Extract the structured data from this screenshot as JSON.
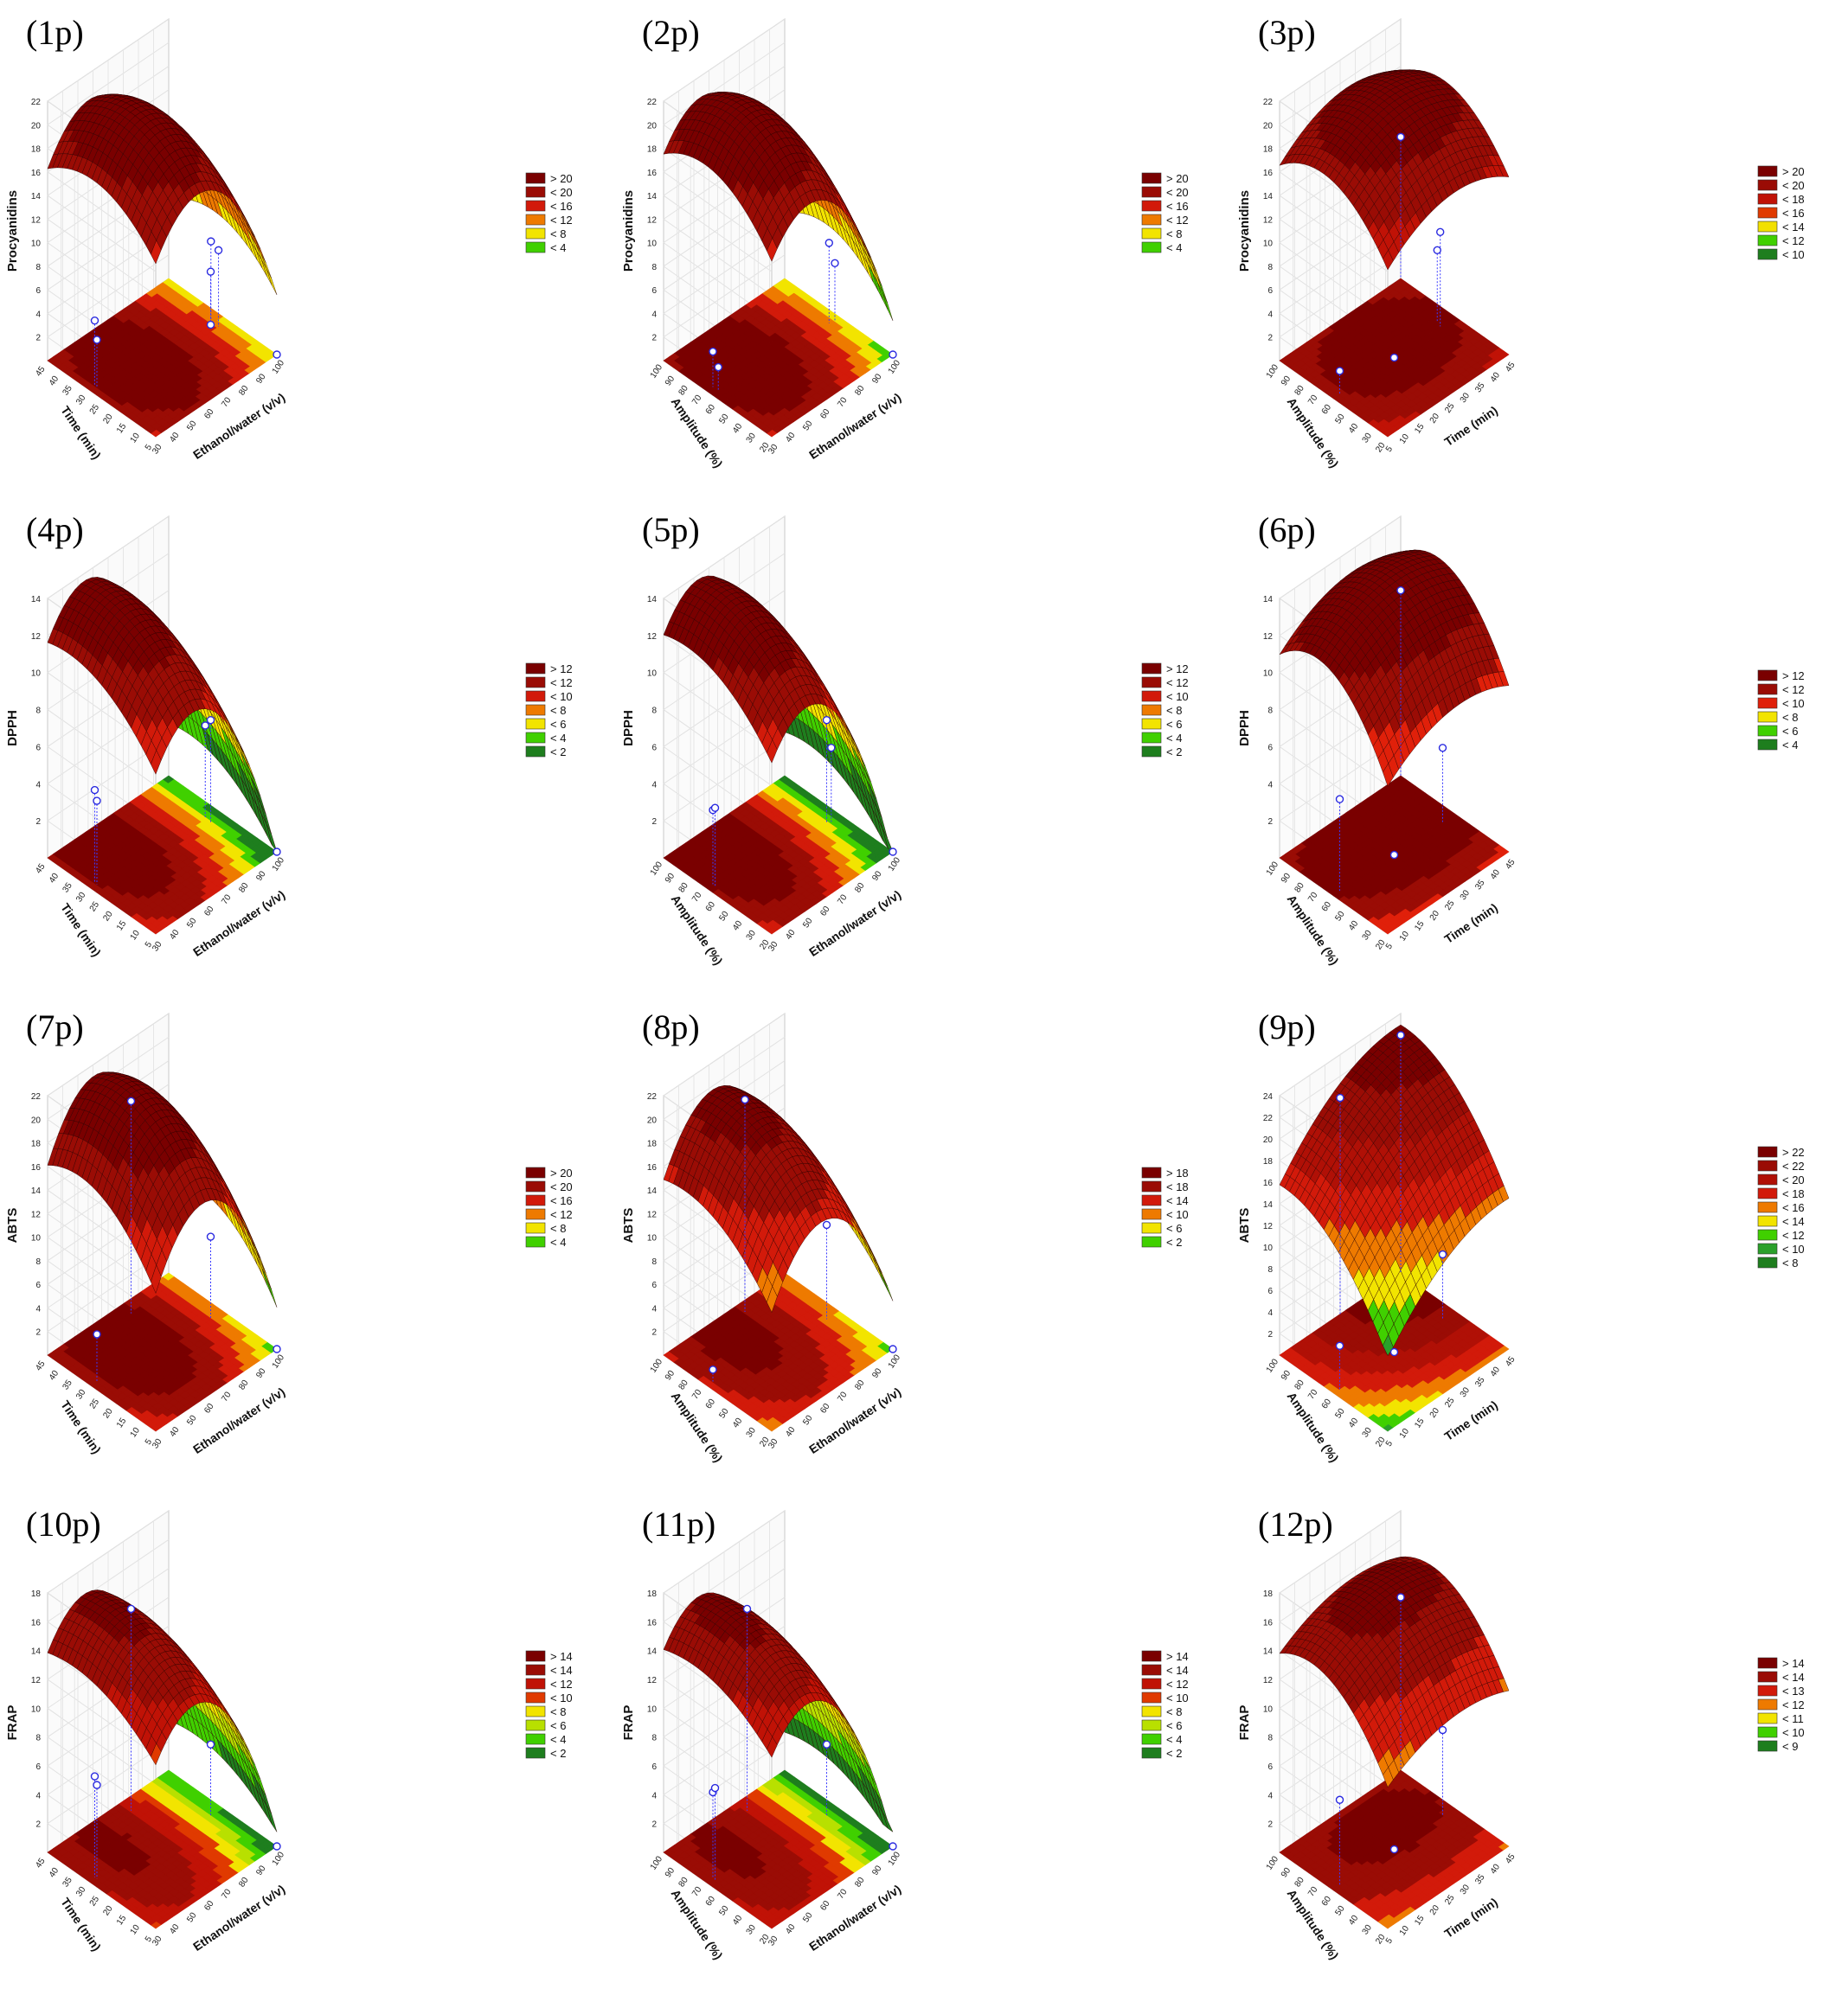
{
  "figure": {
    "panel_count": 12,
    "columns": 3,
    "common_ticks": {
      "ethanol": [
        "30",
        "40",
        "50",
        "60",
        "70",
        "80",
        "90",
        "100"
      ],
      "time": [
        "5",
        "10",
        "15",
        "20",
        "25",
        "30",
        "35",
        "40",
        "45"
      ],
      "amplitude": [
        "20",
        "30",
        "40",
        "50",
        "60",
        "70",
        "80",
        "90",
        "100"
      ]
    }
  },
  "chart_data": [
    {
      "type": "surface",
      "label": "(1p)",
      "zlabel": "Procyanidins",
      "xlabel": "Ethanol/water (v/v)",
      "ylabel": "Time (min)",
      "xlim": [
        30,
        100
      ],
      "ylim": [
        5,
        45
      ],
      "zlim": [
        0,
        22
      ],
      "z_ticks": [
        "2",
        "4",
        "6",
        "8",
        "10",
        "12",
        "14",
        "16",
        "18",
        "20",
        "22"
      ],
      "legend": [
        "> 20",
        "< 20",
        "< 16",
        "< 12",
        "< 8",
        "< 4"
      ],
      "legend_colors": [
        "#7a0000",
        "#9a0c05",
        "#d21a0a",
        "#ee7a00",
        "#f2e400",
        "#40d000"
      ],
      "surface": {
        "peak": 21.5,
        "peak_x": 0.34,
        "peak_y": 0.58,
        "curv_x": 30,
        "curv_y": 10,
        "min_z": 1
      },
      "points": [
        [
          0.92,
          0.45,
          6.5
        ],
        [
          0.92,
          0.52,
          6.8
        ],
        [
          0.9,
          0.5,
          4.5
        ],
        [
          0.05,
          0.62,
          5.5
        ],
        [
          0.05,
          0.6,
          4
        ],
        [
          1.0,
          0.0,
          0
        ],
        [
          0.9,
          0.5,
          0
        ]
      ]
    },
    {
      "type": "surface",
      "label": "(2p)",
      "zlabel": "Procyanidins",
      "xlabel": "Ethanol/water (v/v)",
      "ylabel": "Amplitude (%)",
      "xlim": [
        30,
        100
      ],
      "ylim": [
        20,
        100
      ],
      "zlim": [
        0,
        22
      ],
      "z_ticks": [
        "2",
        "4",
        "6",
        "8",
        "10",
        "12",
        "14",
        "16",
        "18",
        "20",
        "22"
      ],
      "legend": [
        "> 20",
        "< 20",
        "< 16",
        "< 12",
        "< 8",
        "< 4"
      ],
      "legend_colors": [
        "#7a0000",
        "#9a0c05",
        "#d21a0a",
        "#ee7a00",
        "#f2e400",
        "#40d000"
      ],
      "surface": {
        "peak": 21.8,
        "peak_x": 0.3,
        "peak_y": 0.62,
        "curv_x": 30,
        "curv_y": 11,
        "min_z": 1
      },
      "points": [
        [
          0.92,
          0.5,
          6.8
        ],
        [
          0.95,
          0.48,
          5
        ],
        [
          0.05,
          0.55,
          2
        ],
        [
          0.05,
          0.6,
          3
        ],
        [
          1.0,
          0.0,
          0
        ]
      ]
    },
    {
      "type": "surface",
      "label": "(3p)",
      "zlabel": "Procyanidins",
      "xlabel": "Time (min)",
      "ylabel": "Amplitude (%)",
      "xlim": [
        5,
        45
      ],
      "ylim": [
        20,
        100
      ],
      "zlim": [
        0,
        22
      ],
      "z_ticks": [
        "2",
        "4",
        "6",
        "8",
        "10",
        "12",
        "14",
        "16",
        "18",
        "20",
        "22"
      ],
      "legend": [
        "> 20",
        "< 20",
        "< 18",
        "< 16",
        "< 14",
        "< 12",
        "< 10"
      ],
      "legend_colors": [
        "#7a0000",
        "#9a0c05",
        "#c01206",
        "#e03a00",
        "#f2e000",
        "#40d000",
        "#1e7e1e"
      ],
      "surface": {
        "peak": 21.2,
        "peak_x": 0.55,
        "peak_y": 0.6,
        "curv_x": 9,
        "curv_y": 12,
        "min_z": 6
      },
      "points": [
        [
          0.88,
          0.5,
          8
        ],
        [
          0.9,
          0.55,
          6
        ],
        [
          1.0,
          1.0,
          12
        ],
        [
          0.05,
          0.5,
          2
        ],
        [
          0.5,
          0.5,
          0
        ]
      ]
    },
    {
      "type": "surface",
      "label": "(4p)",
      "zlabel": "DPPH",
      "xlabel": "Ethanol/water (v/v)",
      "ylabel": "Time (min)",
      "xlim": [
        30,
        100
      ],
      "ylim": [
        5,
        45
      ],
      "zlim": [
        0,
        14
      ],
      "z_ticks": [
        "2",
        "4",
        "6",
        "8",
        "10",
        "12",
        "14"
      ],
      "legend": [
        "> 12",
        "< 12",
        "< 10",
        "< 8",
        "< 6",
        "< 4",
        "< 2"
      ],
      "legend_colors": [
        "#7a0000",
        "#9a0c05",
        "#d21a0a",
        "#ee7a00",
        "#f2e400",
        "#40d000",
        "#1e7e1e"
      ],
      "surface": {
        "peak": 13.8,
        "peak_x": 0.3,
        "peak_y": 0.8,
        "curv_x": 22,
        "curv_y": 5,
        "min_z": 0
      },
      "points": [
        [
          0.9,
          0.5,
          5.5
        ],
        [
          0.9,
          0.55,
          5
        ],
        [
          0.05,
          0.62,
          5
        ],
        [
          0.05,
          0.6,
          4.5
        ],
        [
          1.0,
          0.0,
          0
        ]
      ]
    },
    {
      "type": "surface",
      "label": "(5p)",
      "zlabel": "DPPH",
      "xlabel": "Ethanol/water (v/v)",
      "ylabel": "Amplitude (%)",
      "xlim": [
        30,
        100
      ],
      "ylim": [
        20,
        100
      ],
      "zlim": [
        0,
        14
      ],
      "z_ticks": [
        "2",
        "4",
        "6",
        "8",
        "10",
        "12",
        "14"
      ],
      "legend": [
        "> 12",
        "< 12",
        "< 10",
        "< 8",
        "< 6",
        "< 4",
        "< 2"
      ],
      "legend_colors": [
        "#7a0000",
        "#9a0c05",
        "#d21a0a",
        "#ee7a00",
        "#f2e400",
        "#40d000",
        "#1e7e1e"
      ],
      "surface": {
        "peak": 14,
        "peak_x": 0.28,
        "peak_y": 0.78,
        "curv_x": 22,
        "curv_y": 5,
        "min_z": 0
      },
      "points": [
        [
          0.9,
          0.5,
          5.5
        ],
        [
          0.92,
          0.48,
          4
        ],
        [
          0.05,
          0.6,
          4
        ],
        [
          0.05,
          0.58,
          4.2
        ],
        [
          1.0,
          0.0,
          0
        ]
      ]
    },
    {
      "type": "surface",
      "label": "(6p)",
      "zlabel": "DPPH",
      "xlabel": "Time (min)",
      "ylabel": "Amplitude (%)",
      "xlim": [
        5,
        45
      ],
      "ylim": [
        20,
        100
      ],
      "zlim": [
        0,
        14
      ],
      "z_ticks": [
        "2",
        "4",
        "6",
        "8",
        "10",
        "12",
        "14"
      ],
      "legend": [
        "> 12",
        "< 12",
        "< 10",
        "< 8",
        "< 6",
        "< 4"
      ],
      "legend_colors": [
        "#7a0000",
        "#9a0c05",
        "#e0200a",
        "#f2e400",
        "#40d000",
        "#1e7e1e"
      ],
      "surface": {
        "peak": 14,
        "peak_x": 0.6,
        "peak_y": 0.65,
        "curv_x": 5,
        "curv_y": 10,
        "min_z": 3
      },
      "points": [
        [
          0.9,
          0.5,
          4
        ],
        [
          1.0,
          1.0,
          10
        ],
        [
          0.05,
          0.5,
          5
        ],
        [
          0.5,
          0.5,
          0
        ]
      ]
    },
    {
      "type": "surface",
      "label": "(7p)",
      "zlabel": "ABTS",
      "xlabel": "Ethanol/water (v/v)",
      "ylabel": "Time (min)",
      "xlim": [
        30,
        100
      ],
      "ylim": [
        5,
        45
      ],
      "zlim": [
        0,
        22
      ],
      "z_ticks": [
        "2",
        "4",
        "6",
        "8",
        "10",
        "12",
        "14",
        "16",
        "18",
        "20",
        "22"
      ],
      "legend": [
        "> 20",
        "< 20",
        "< 16",
        "< 12",
        "< 8",
        "< 4"
      ],
      "legend_colors": [
        "#7a0000",
        "#9a0c05",
        "#d21a0a",
        "#ee7a00",
        "#f2e400",
        "#40d000"
      ],
      "surface": {
        "peak": 22,
        "peak_x": 0.38,
        "peak_y": 0.7,
        "curv_x": 34,
        "curv_y": 11,
        "min_z": 2
      },
      "points": [
        [
          0.9,
          0.5,
          7
        ],
        [
          0.6,
          0.9,
          18
        ],
        [
          0.05,
          0.6,
          4
        ],
        [
          1.0,
          0.0,
          0
        ]
      ]
    },
    {
      "type": "surface",
      "label": "(8p)",
      "zlabel": "ABTS",
      "xlabel": "Ethanol/water (v/v)",
      "ylabel": "Amplitude (%)",
      "xlim": [
        30,
        100
      ],
      "ylim": [
        20,
        100
      ],
      "zlim": [
        0,
        22
      ],
      "z_ticks": [
        "2",
        "4",
        "6",
        "8",
        "10",
        "12",
        "14",
        "16",
        "18",
        "20",
        "22"
      ],
      "legend": [
        "> 18",
        "< 18",
        "< 14",
        "< 10",
        "< 6",
        "< 2"
      ],
      "legend_colors": [
        "#7a0000",
        "#9a0c05",
        "#d21a0a",
        "#ee7a00",
        "#f2e400",
        "#40d000"
      ],
      "surface": {
        "peak": 20,
        "peak_x": 0.4,
        "peak_y": 0.8,
        "curv_x": 30,
        "curv_y": 8,
        "min_z": 0
      },
      "points": [
        [
          0.9,
          0.5,
          8
        ],
        [
          0.6,
          0.92,
          18
        ],
        [
          0.05,
          0.6,
          1
        ],
        [
          1.0,
          0.0,
          0
        ]
      ]
    },
    {
      "type": "surface",
      "label": "(9p)",
      "zlabel": "ABTS",
      "xlabel": "Time (min)",
      "ylabel": "Amplitude (%)",
      "xlim": [
        5,
        45
      ],
      "ylim": [
        20,
        100
      ],
      "zlim": [
        0,
        24
      ],
      "z_ticks": [
        "2",
        "4",
        "6",
        "8",
        "10",
        "12",
        "14",
        "16",
        "18",
        "20",
        "22",
        "24"
      ],
      "legend": [
        "> 22",
        "< 22",
        "< 20",
        "< 18",
        "< 16",
        "< 14",
        "< 12",
        "< 10",
        "< 8"
      ],
      "legend_colors": [
        "#7a0000",
        "#9a0c05",
        "#b01006",
        "#d21a0a",
        "#ee7a00",
        "#f2e400",
        "#40d000",
        "#2aa02a",
        "#1e7e1e"
      ],
      "surface": {
        "peak": 23,
        "peak_x": 0.95,
        "peak_y": 0.95,
        "curv_x": 8,
        "curv_y": 10,
        "min_z": 7
      },
      "points": [
        [
          0.9,
          0.5,
          6
        ],
        [
          0.5,
          1.0,
          20
        ],
        [
          1.0,
          1.0,
          22
        ],
        [
          0.05,
          0.5,
          4
        ],
        [
          0.5,
          0.5,
          0
        ]
      ]
    },
    {
      "type": "surface",
      "label": "(10p)",
      "zlabel": "FRAP",
      "xlabel": "Ethanol/water (v/v)",
      "ylabel": "Time (min)",
      "xlim": [
        30,
        100
      ],
      "ylim": [
        5,
        45
      ],
      "zlim": [
        0,
        18
      ],
      "z_ticks": [
        "2",
        "4",
        "6",
        "8",
        "10",
        "12",
        "14",
        "16",
        "18"
      ],
      "legend": [
        "> 14",
        "< 14",
        "< 12",
        "< 10",
        "< 8",
        "< 6",
        "< 4",
        "< 2"
      ],
      "legend_colors": [
        "#7a0000",
        "#9a0c05",
        "#c01206",
        "#e03a00",
        "#f2e400",
        "#b8e000",
        "#40d000",
        "#1e7e1e"
      ],
      "surface": {
        "peak": 16.5,
        "peak_x": 0.3,
        "peak_y": 0.75,
        "curv_x": 26,
        "curv_y": 5,
        "min_z": 1
      },
      "points": [
        [
          0.9,
          0.5,
          5
        ],
        [
          0.6,
          0.9,
          14
        ],
        [
          0.05,
          0.62,
          7
        ],
        [
          0.05,
          0.6,
          6.5
        ],
        [
          1.0,
          0.0,
          0
        ]
      ]
    },
    {
      "type": "surface",
      "label": "(11p)",
      "zlabel": "FRAP",
      "xlabel": "Ethanol/water (v/v)",
      "ylabel": "Amplitude (%)",
      "xlim": [
        30,
        100
      ],
      "ylim": [
        20,
        100
      ],
      "zlim": [
        0,
        18
      ],
      "z_ticks": [
        "2",
        "4",
        "6",
        "8",
        "10",
        "12",
        "14",
        "16",
        "18"
      ],
      "legend": [
        "> 14",
        "< 14",
        "< 12",
        "< 10",
        "< 8",
        "< 6",
        "< 4",
        "< 2"
      ],
      "legend_colors": [
        "#7a0000",
        "#9a0c05",
        "#c01206",
        "#e03a00",
        "#f2e400",
        "#b8e000",
        "#40d000",
        "#1e7e1e"
      ],
      "surface": {
        "peak": 16.5,
        "peak_x": 0.28,
        "peak_y": 0.72,
        "curv_x": 26,
        "curv_y": 5,
        "min_z": 1
      },
      "points": [
        [
          0.9,
          0.5,
          5
        ],
        [
          0.6,
          0.9,
          14
        ],
        [
          0.05,
          0.6,
          6
        ],
        [
          0.05,
          0.58,
          6.4
        ],
        [
          1.0,
          0.0,
          0
        ]
      ]
    },
    {
      "type": "surface",
      "label": "(12p)",
      "zlabel": "FRAP",
      "xlabel": "Time (min)",
      "ylabel": "Amplitude (%)",
      "xlim": [
        5,
        45
      ],
      "ylim": [
        20,
        100
      ],
      "zlim": [
        0,
        18
      ],
      "z_ticks": [
        "2",
        "4",
        "6",
        "8",
        "10",
        "12",
        "14",
        "16",
        "18"
      ],
      "legend": [
        "> 14",
        "< 14",
        "< 13",
        "< 12",
        "< 11",
        "< 10",
        "< 9"
      ],
      "legend_colors": [
        "#7a0000",
        "#9a0c05",
        "#d21a0a",
        "#ee7a00",
        "#f2e400",
        "#40d000",
        "#1e7e1e"
      ],
      "surface": {
        "peak": 16.5,
        "peak_x": 0.6,
        "peak_y": 0.7,
        "curv_x": 5,
        "curv_y": 10,
        "min_z": 8.5
      },
      "points": [
        [
          0.9,
          0.5,
          6
        ],
        [
          1.0,
          1.0,
          12
        ],
        [
          0.05,
          0.5,
          6
        ],
        [
          0.5,
          0.5,
          0
        ]
      ]
    }
  ]
}
